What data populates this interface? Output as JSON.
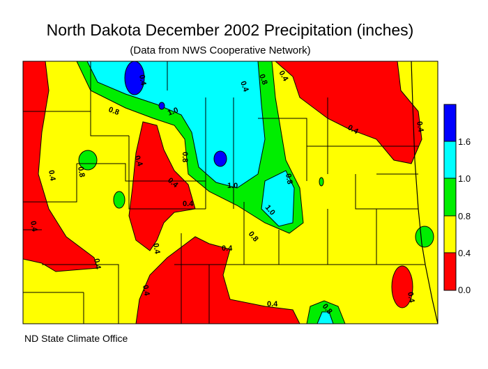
{
  "title": "North Dakota December 2002 Precipitation (inches)",
  "subtitle": "(Data from NWS Cooperative Network)",
  "credit": "ND State Climate Office",
  "legend": {
    "ticks": [
      "1.6",
      "1.0",
      "0.8",
      "0.4",
      "0.0"
    ],
    "bins": [
      {
        "range": "0.0-0.4",
        "color": "#ff0000"
      },
      {
        "range": "0.4-0.8",
        "color": "#ffff00"
      },
      {
        "range": "0.8-1.0",
        "color": "#00ee00"
      },
      {
        "range": "1.0-1.6",
        "color": "#00ffff"
      },
      {
        "range": ">1.6",
        "color": "#0000ff"
      }
    ]
  },
  "contour_labels": [
    "0.4",
    "0.8",
    "1.0",
    "0.8",
    "0.4",
    "0.4",
    "0.8",
    "0.4",
    "0.4",
    "0.4",
    "0.4",
    "0.4",
    "1.0",
    "0.8",
    "1.0",
    "0.8",
    "0.4",
    "0.4",
    "0.4",
    "0.4",
    "0.8",
    "0.4",
    "0.4",
    "0.8",
    "0.4",
    "0.4"
  ]
}
